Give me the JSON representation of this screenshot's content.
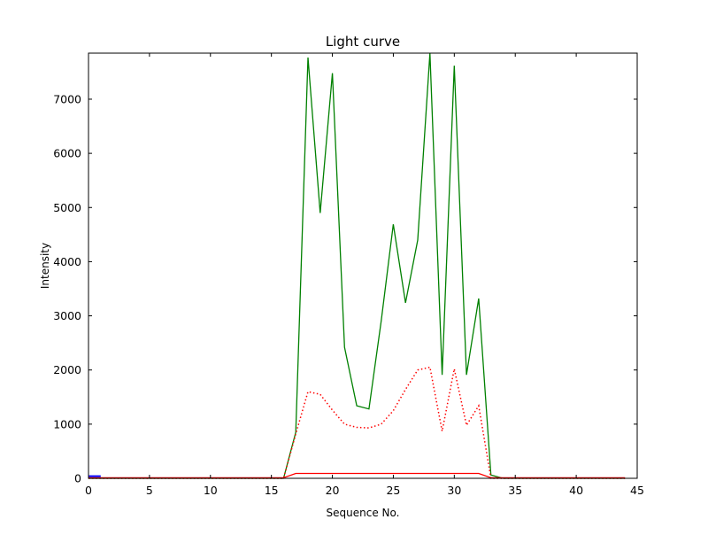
{
  "chart_data": {
    "type": "line",
    "title": "Light curve",
    "xlabel": "Sequence No.",
    "ylabel": "Intensity",
    "xlim": [
      0,
      45
    ],
    "ylim": [
      0,
      7850
    ],
    "x_ticks": [
      0,
      5,
      10,
      15,
      20,
      25,
      30,
      35,
      40,
      45
    ],
    "y_ticks": [
      0,
      1000,
      2000,
      3000,
      4000,
      5000,
      6000,
      7000
    ],
    "grid": false,
    "legend": "none",
    "background_color": "#ffffff",
    "axis_color": "#000000",
    "x": [
      0,
      1,
      2,
      3,
      4,
      5,
      6,
      7,
      8,
      9,
      10,
      11,
      12,
      13,
      14,
      15,
      16,
      17,
      18,
      19,
      20,
      21,
      22,
      23,
      24,
      25,
      26,
      27,
      28,
      29,
      30,
      31,
      32,
      33,
      34,
      35,
      36,
      37,
      38,
      39,
      40,
      41,
      42,
      43,
      44
    ],
    "series": [
      {
        "name": "green-solid",
        "color": "#008000",
        "style": "solid",
        "width": 1.3,
        "values": [
          0,
          0,
          0,
          0,
          0,
          0,
          0,
          0,
          0,
          0,
          0,
          0,
          0,
          0,
          0,
          0,
          0,
          850,
          7770,
          4900,
          7480,
          2420,
          1340,
          1280,
          2900,
          4690,
          3240,
          4400,
          7850,
          1910,
          7620,
          1910,
          3320,
          60,
          0,
          0,
          0,
          0,
          0,
          0,
          0,
          0,
          0,
          0,
          0
        ]
      },
      {
        "name": "red-dotted",
        "color": "#ff0000",
        "style": "dotted",
        "width": 1.5,
        "values": [
          0,
          0,
          0,
          0,
          0,
          0,
          0,
          0,
          0,
          0,
          0,
          0,
          0,
          0,
          0,
          0,
          0,
          820,
          1600,
          1550,
          1260,
          1000,
          940,
          930,
          1000,
          1250,
          1640,
          2000,
          2050,
          870,
          2020,
          980,
          1340,
          0,
          0,
          0,
          0,
          0,
          0,
          0,
          0,
          0,
          0,
          0,
          0
        ]
      },
      {
        "name": "red-solid",
        "color": "#ff0000",
        "style": "solid",
        "width": 1.3,
        "values": [
          10,
          10,
          10,
          10,
          10,
          10,
          10,
          10,
          10,
          10,
          10,
          10,
          10,
          10,
          10,
          10,
          10,
          90,
          90,
          90,
          90,
          90,
          90,
          90,
          90,
          90,
          90,
          90,
          90,
          90,
          90,
          90,
          90,
          10,
          10,
          10,
          10,
          10,
          10,
          10,
          10,
          10,
          10,
          10,
          10
        ]
      },
      {
        "name": "blue-solid",
        "color": "#0000ff",
        "style": "solid",
        "width": 2,
        "x": [
          0,
          1
        ],
        "values": [
          40,
          40
        ]
      }
    ]
  }
}
